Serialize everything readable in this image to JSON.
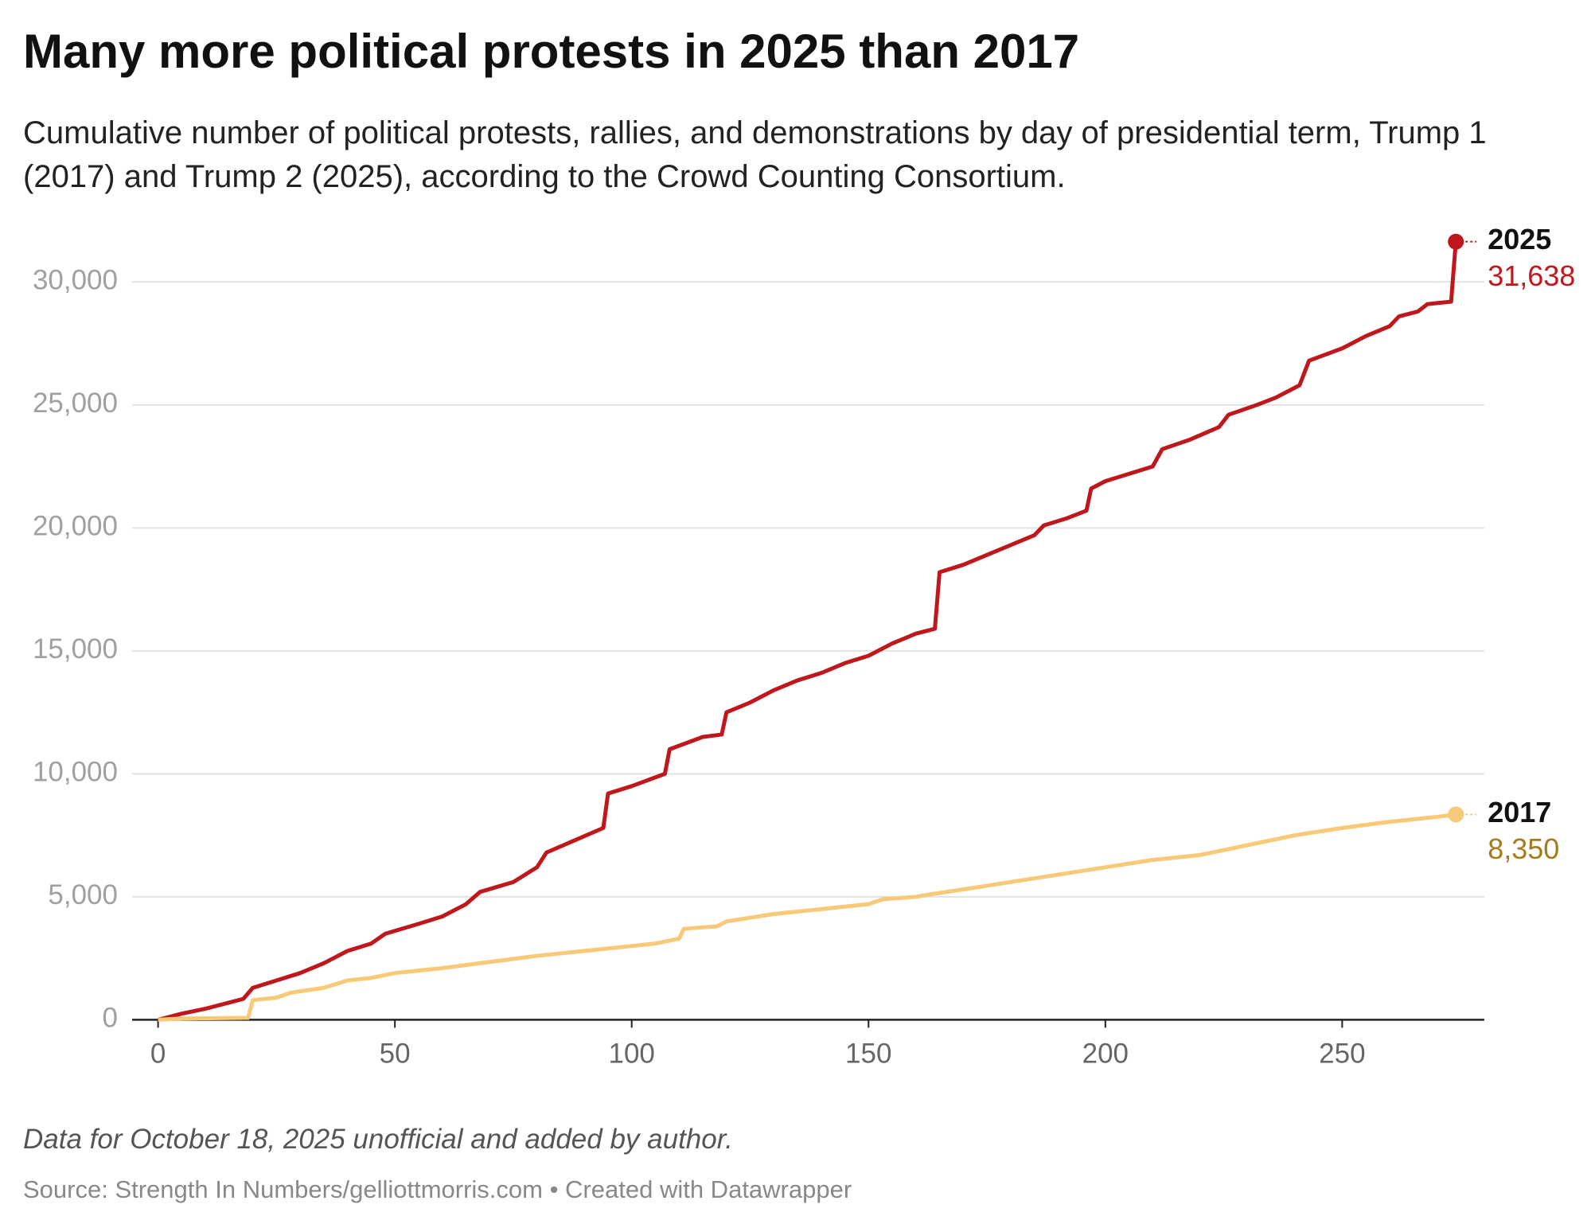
{
  "chart_data": {
    "type": "line",
    "title": "Many more political protests in 2025 than 2017",
    "subtitle": "Cumulative number of political protests, rallies, and demonstrations by day of presidential term, Trump 1 (2017) and Trump 2 (2025), according to the Crowd Counting Consortium.",
    "note": "Data for October 18, 2025 unofficial and added by author.",
    "source": "Source: Strength In Numbers/gelliottmorris.com • Created with Datawrapper",
    "xlim": [
      0,
      280
    ],
    "ylim": [
      0,
      32000
    ],
    "xticks": [
      0,
      50,
      100,
      150,
      200,
      250
    ],
    "yticks": [
      0,
      {
        "value": 5000,
        "label": "5,000"
      },
      {
        "value": 10000,
        "label": "10,000"
      },
      {
        "value": 15000,
        "label": "15,000"
      },
      {
        "value": 20000,
        "label": "20,000"
      },
      {
        "value": 25000,
        "label": "25,000"
      },
      {
        "value": 30000,
        "label": "30,000"
      }
    ],
    "grid": true,
    "series": [
      {
        "name": "2025",
        "color": "#c0171d",
        "label_color": "#c0171d",
        "x": [
          0,
          5,
          10,
          15,
          18,
          20,
          25,
          30,
          35,
          40,
          45,
          48,
          55,
          60,
          65,
          68,
          75,
          80,
          82,
          88,
          94,
          95,
          100,
          107,
          108,
          115,
          119,
          120,
          125,
          130,
          135,
          140,
          145,
          150,
          155,
          160,
          164,
          165,
          170,
          175,
          180,
          185,
          187,
          192,
          196,
          197,
          200,
          205,
          210,
          212,
          218,
          224,
          226,
          232,
          236,
          241,
          243,
          250,
          255,
          260,
          262,
          266,
          268,
          273,
          274
        ],
        "values": [
          0,
          250,
          450,
          700,
          850,
          1300,
          1600,
          1900,
          2300,
          2800,
          3100,
          3500,
          3900,
          4200,
          4700,
          5200,
          5600,
          6200,
          6800,
          7300,
          7800,
          9200,
          9500,
          10000,
          11000,
          11500,
          11600,
          12500,
          12900,
          13400,
          13800,
          14100,
          14500,
          14800,
          15300,
          15700,
          15900,
          18200,
          18500,
          18900,
          19300,
          19700,
          20100,
          20400,
          20700,
          21600,
          21900,
          22200,
          22500,
          23200,
          23600,
          24100,
          24600,
          25000,
          25300,
          25800,
          26800,
          27300,
          27800,
          28200,
          28600,
          28800,
          29100,
          29200,
          31638
        ],
        "value_labels": [
          null,
          null,
          null,
          null,
          null,
          null,
          null,
          null,
          null,
          null,
          null,
          null,
          null,
          null,
          null,
          null,
          null,
          null,
          null,
          null,
          null,
          null,
          null,
          null,
          null,
          null,
          null,
          null,
          null,
          null,
          null,
          null,
          null,
          null,
          null,
          null,
          null,
          null,
          null,
          null,
          null,
          null,
          null,
          null,
          null,
          null,
          null,
          null,
          null,
          null,
          null,
          null,
          null,
          null,
          null,
          null,
          null,
          null,
          null,
          null,
          null,
          null,
          null,
          null,
          "31,638"
        ]
      },
      {
        "name": "2017",
        "color": "#f8c977",
        "label_color": "#a57c1b",
        "x": [
          0,
          5,
          19,
          20,
          25,
          28,
          35,
          40,
          45,
          50,
          60,
          70,
          80,
          90,
          100,
          105,
          110,
          111,
          118,
          120,
          130,
          140,
          150,
          153,
          160,
          163,
          170,
          180,
          190,
          200,
          210,
          220,
          230,
          240,
          250,
          260,
          270,
          274
        ],
        "values": [
          0,
          50,
          80,
          800,
          900,
          1100,
          1300,
          1600,
          1700,
          1900,
          2100,
          2350,
          2600,
          2800,
          3000,
          3100,
          3300,
          3700,
          3800,
          4000,
          4300,
          4500,
          4700,
          4900,
          5000,
          5100,
          5300,
          5600,
          5900,
          6200,
          6500,
          6700,
          7100,
          7500,
          7800,
          8050,
          8250,
          8350
        ],
        "value_labels": [
          null,
          null,
          null,
          null,
          null,
          null,
          null,
          null,
          null,
          null,
          null,
          null,
          null,
          null,
          null,
          null,
          null,
          null,
          null,
          null,
          null,
          null,
          null,
          null,
          null,
          null,
          null,
          null,
          null,
          null,
          null,
          null,
          null,
          null,
          null,
          null,
          null,
          "8,350"
        ]
      }
    ]
  }
}
